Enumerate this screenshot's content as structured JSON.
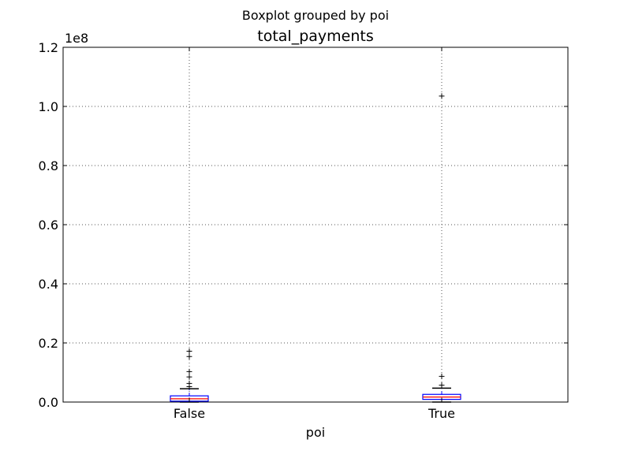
{
  "figure": {
    "suptitle": "Boxplot grouped by poi",
    "title": "total_payments"
  },
  "chart_data": {
    "type": "box",
    "title": "total_payments",
    "suptitle": "Boxplot grouped by poi",
    "xlabel": "poi",
    "ylabel": "",
    "y_scale_label": "1e8",
    "ylim": [
      0,
      1.2
    ],
    "yticks": [
      "0.0",
      "0.2",
      "0.4",
      "0.6",
      "0.8",
      "1.0",
      "1.2"
    ],
    "ytick_values": [
      0,
      0.2,
      0.4,
      0.6,
      0.8,
      1.0,
      1.2
    ],
    "grid": true,
    "categories": [
      "False",
      "True"
    ],
    "boxes": [
      {
        "name": "False",
        "whisker_low": 0.0,
        "q1": 0.003,
        "median": 0.011,
        "q3": 0.021,
        "whisker_high": 0.045,
        "outliers": [
          0.052,
          0.063,
          0.085,
          0.103,
          0.154,
          0.172
        ]
      },
      {
        "name": "True",
        "whisker_low": 0.0,
        "q1": 0.009,
        "median": 0.017,
        "q3": 0.026,
        "whisker_high": 0.047,
        "outliers": [
          0.057,
          0.087,
          1.035
        ]
      }
    ],
    "colors": {
      "box": "#0000ff",
      "median": "#ff0000",
      "whisker": "#000000",
      "grid": "#555555"
    }
  }
}
